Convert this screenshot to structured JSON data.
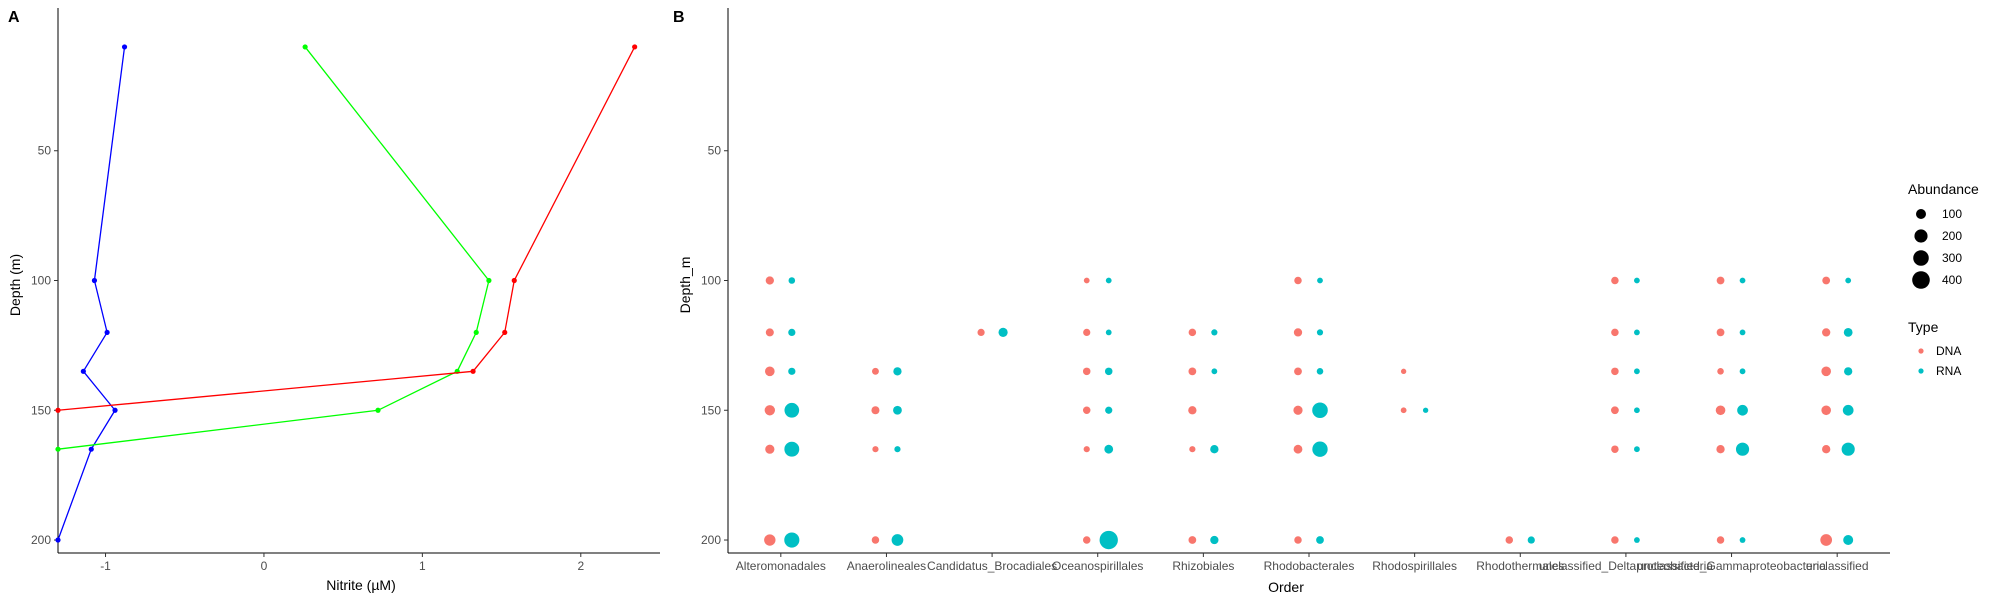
{
  "chart_data": [
    {
      "panel": "A",
      "type": "line",
      "xlabel": "Nitrite (µM)",
      "ylabel": "Depth (m)",
      "xlim": [
        -1.3,
        2.5
      ],
      "ylim": [
        205,
        -5
      ],
      "xticks": [
        -1,
        0,
        1,
        2
      ],
      "yticks": [
        50,
        100,
        150,
        200
      ],
      "grid": false,
      "series": [
        {
          "color": "#0000FF",
          "x": [
            -0.88,
            -1.07,
            -0.99,
            -1.14,
            -0.94,
            -1.09,
            -1.3
          ],
          "y": [
            10,
            100,
            120,
            135,
            150,
            165,
            200
          ]
        },
        {
          "color": "#00FF00",
          "x": [
            0.26,
            1.42,
            1.34,
            1.22,
            0.72,
            -1.3
          ],
          "y": [
            10,
            100,
            120,
            135,
            150,
            165
          ]
        },
        {
          "color": "#FF0000",
          "x": [
            2.34,
            1.58,
            1.52,
            1.32,
            -1.3
          ],
          "y": [
            10,
            100,
            120,
            135,
            150
          ]
        }
      ]
    },
    {
      "panel": "B",
      "type": "scatter",
      "xlabel": "Order",
      "ylabel": "Depth_m",
      "ylim": [
        205,
        -5
      ],
      "yticks": [
        50,
        100,
        150,
        200
      ],
      "categories": [
        "Alteromonadales",
        "Anaerolineales",
        "Candidatus_Brocadiales",
        "Oceanospirillales",
        "Rhizobiales",
        "Rhodobacterales",
        "Rhodospirillales",
        "Rhodothermales",
        "unclassified_Deltaproteobacteria",
        "unclassified_Gammaproteobacteria",
        "unclassified"
      ],
      "legend": {
        "size_title": "Abundance",
        "size_values": [
          100,
          200,
          300,
          400
        ],
        "type_title": "Type",
        "types": [
          {
            "label": "DNA",
            "color": "#F8766D"
          },
          {
            "label": "RNA",
            "color": "#00BFC4"
          }
        ],
        "placement": "right"
      },
      "points": [
        {
          "order": 0,
          "depth": 100,
          "type": "DNA",
          "abundance": 60
        },
        {
          "order": 0,
          "depth": 100,
          "type": "RNA",
          "abundance": 30
        },
        {
          "order": 0,
          "depth": 120,
          "type": "DNA",
          "abundance": 55
        },
        {
          "order": 0,
          "depth": 120,
          "type": "RNA",
          "abundance": 40
        },
        {
          "order": 0,
          "depth": 135,
          "type": "DNA",
          "abundance": 90
        },
        {
          "order": 0,
          "depth": 135,
          "type": "RNA",
          "abundance": 40
        },
        {
          "order": 0,
          "depth": 150,
          "type": "DNA",
          "abundance": 110
        },
        {
          "order": 0,
          "depth": 150,
          "type": "RNA",
          "abundance": 260
        },
        {
          "order": 0,
          "depth": 165,
          "type": "DNA",
          "abundance": 80
        },
        {
          "order": 0,
          "depth": 165,
          "type": "RNA",
          "abundance": 270
        },
        {
          "order": 0,
          "depth": 200,
          "type": "DNA",
          "abundance": 140
        },
        {
          "order": 0,
          "depth": 200,
          "type": "RNA",
          "abundance": 280
        },
        {
          "order": 1,
          "depth": 135,
          "type": "DNA",
          "abundance": 35
        },
        {
          "order": 1,
          "depth": 135,
          "type": "RNA",
          "abundance": 60
        },
        {
          "order": 1,
          "depth": 150,
          "type": "DNA",
          "abundance": 55
        },
        {
          "order": 1,
          "depth": 150,
          "type": "RNA",
          "abundance": 70
        },
        {
          "order": 1,
          "depth": 165,
          "type": "DNA",
          "abundance": 25
        },
        {
          "order": 1,
          "depth": 165,
          "type": "RNA",
          "abundance": 25
        },
        {
          "order": 1,
          "depth": 200,
          "type": "DNA",
          "abundance": 45
        },
        {
          "order": 1,
          "depth": 200,
          "type": "RNA",
          "abundance": 150
        },
        {
          "order": 2,
          "depth": 120,
          "type": "DNA",
          "abundance": 40
        },
        {
          "order": 2,
          "depth": 120,
          "type": "RNA",
          "abundance": 80
        },
        {
          "order": 3,
          "depth": 100,
          "type": "DNA",
          "abundance": 20
        },
        {
          "order": 3,
          "depth": 100,
          "type": "RNA",
          "abundance": 20
        },
        {
          "order": 3,
          "depth": 120,
          "type": "DNA",
          "abundance": 40
        },
        {
          "order": 3,
          "depth": 120,
          "type": "RNA",
          "abundance": 20
        },
        {
          "order": 3,
          "depth": 135,
          "type": "DNA",
          "abundance": 45
        },
        {
          "order": 3,
          "depth": 135,
          "type": "RNA",
          "abundance": 45
        },
        {
          "order": 3,
          "depth": 150,
          "type": "DNA",
          "abundance": 45
        },
        {
          "order": 3,
          "depth": 150,
          "type": "RNA",
          "abundance": 40
        },
        {
          "order": 3,
          "depth": 165,
          "type": "DNA",
          "abundance": 25
        },
        {
          "order": 3,
          "depth": 165,
          "type": "RNA",
          "abundance": 70
        },
        {
          "order": 3,
          "depth": 200,
          "type": "DNA",
          "abundance": 45
        },
        {
          "order": 3,
          "depth": 200,
          "type": "RNA",
          "abundance": 440
        },
        {
          "order": 4,
          "depth": 120,
          "type": "DNA",
          "abundance": 45
        },
        {
          "order": 4,
          "depth": 120,
          "type": "RNA",
          "abundance": 25
        },
        {
          "order": 4,
          "depth": 135,
          "type": "DNA",
          "abundance": 50
        },
        {
          "order": 4,
          "depth": 135,
          "type": "RNA",
          "abundance": 20
        },
        {
          "order": 4,
          "depth": 150,
          "type": "DNA",
          "abundance": 60
        },
        {
          "order": 4,
          "depth": 165,
          "type": "DNA",
          "abundance": 25
        },
        {
          "order": 4,
          "depth": 165,
          "type": "RNA",
          "abundance": 60
        },
        {
          "order": 4,
          "depth": 200,
          "type": "DNA",
          "abundance": 50
        },
        {
          "order": 4,
          "depth": 200,
          "type": "RNA",
          "abundance": 60
        },
        {
          "order": 5,
          "depth": 100,
          "type": "DNA",
          "abundance": 45
        },
        {
          "order": 5,
          "depth": 100,
          "type": "RNA",
          "abundance": 20
        },
        {
          "order": 5,
          "depth": 120,
          "type": "DNA",
          "abundance": 60
        },
        {
          "order": 5,
          "depth": 120,
          "type": "RNA",
          "abundance": 25
        },
        {
          "order": 5,
          "depth": 135,
          "type": "DNA",
          "abundance": 50
        },
        {
          "order": 5,
          "depth": 135,
          "type": "RNA",
          "abundance": 30
        },
        {
          "order": 5,
          "depth": 150,
          "type": "DNA",
          "abundance": 80
        },
        {
          "order": 5,
          "depth": 150,
          "type": "RNA",
          "abundance": 300
        },
        {
          "order": 5,
          "depth": 165,
          "type": "DNA",
          "abundance": 70
        },
        {
          "order": 5,
          "depth": 165,
          "type": "RNA",
          "abundance": 290
        },
        {
          "order": 5,
          "depth": 200,
          "type": "DNA",
          "abundance": 45
        },
        {
          "order": 5,
          "depth": 200,
          "type": "RNA",
          "abundance": 50
        },
        {
          "order": 6,
          "depth": 135,
          "type": "DNA",
          "abundance": 15
        },
        {
          "order": 6,
          "depth": 150,
          "type": "DNA",
          "abundance": 20
        },
        {
          "order": 6,
          "depth": 150,
          "type": "RNA",
          "abundance": 15
        },
        {
          "order": 7,
          "depth": 200,
          "type": "DNA",
          "abundance": 45
        },
        {
          "order": 7,
          "depth": 200,
          "type": "RNA",
          "abundance": 40
        },
        {
          "order": 8,
          "depth": 100,
          "type": "DNA",
          "abundance": 45
        },
        {
          "order": 8,
          "depth": 100,
          "type": "RNA",
          "abundance": 20
        },
        {
          "order": 8,
          "depth": 120,
          "type": "DNA",
          "abundance": 45
        },
        {
          "order": 8,
          "depth": 120,
          "type": "RNA",
          "abundance": 20
        },
        {
          "order": 8,
          "depth": 135,
          "type": "DNA",
          "abundance": 45
        },
        {
          "order": 8,
          "depth": 135,
          "type": "RNA",
          "abundance": 20
        },
        {
          "order": 8,
          "depth": 150,
          "type": "DNA",
          "abundance": 50
        },
        {
          "order": 8,
          "depth": 150,
          "type": "RNA",
          "abundance": 20
        },
        {
          "order": 8,
          "depth": 165,
          "type": "DNA",
          "abundance": 45
        },
        {
          "order": 8,
          "depth": 165,
          "type": "RNA",
          "abundance": 20
        },
        {
          "order": 8,
          "depth": 200,
          "type": "DNA",
          "abundance": 45
        },
        {
          "order": 8,
          "depth": 200,
          "type": "RNA",
          "abundance": 20
        },
        {
          "order": 9,
          "depth": 100,
          "type": "DNA",
          "abundance": 50
        },
        {
          "order": 9,
          "depth": 100,
          "type": "RNA",
          "abundance": 20
        },
        {
          "order": 9,
          "depth": 120,
          "type": "DNA",
          "abundance": 50
        },
        {
          "order": 9,
          "depth": 120,
          "type": "RNA",
          "abundance": 20
        },
        {
          "order": 9,
          "depth": 135,
          "type": "DNA",
          "abundance": 30
        },
        {
          "order": 9,
          "depth": 135,
          "type": "RNA",
          "abundance": 20
        },
        {
          "order": 9,
          "depth": 150,
          "type": "DNA",
          "abundance": 90
        },
        {
          "order": 9,
          "depth": 150,
          "type": "RNA",
          "abundance": 120
        },
        {
          "order": 9,
          "depth": 165,
          "type": "DNA",
          "abundance": 60
        },
        {
          "order": 9,
          "depth": 165,
          "type": "RNA",
          "abundance": 200
        },
        {
          "order": 9,
          "depth": 200,
          "type": "DNA",
          "abundance": 45
        },
        {
          "order": 9,
          "depth": 200,
          "type": "RNA",
          "abundance": 20
        },
        {
          "order": 10,
          "depth": 100,
          "type": "DNA",
          "abundance": 50
        },
        {
          "order": 10,
          "depth": 100,
          "type": "RNA",
          "abundance": 20
        },
        {
          "order": 10,
          "depth": 120,
          "type": "DNA",
          "abundance": 60
        },
        {
          "order": 10,
          "depth": 120,
          "type": "RNA",
          "abundance": 70
        },
        {
          "order": 10,
          "depth": 135,
          "type": "DNA",
          "abundance": 90
        },
        {
          "order": 10,
          "depth": 135,
          "type": "RNA",
          "abundance": 60
        },
        {
          "order": 10,
          "depth": 150,
          "type": "DNA",
          "abundance": 90
        },
        {
          "order": 10,
          "depth": 150,
          "type": "RNA",
          "abundance": 120
        },
        {
          "order": 10,
          "depth": 165,
          "type": "DNA",
          "abundance": 60
        },
        {
          "order": 10,
          "depth": 165,
          "type": "RNA",
          "abundance": 200
        },
        {
          "order": 10,
          "depth": 200,
          "type": "DNA",
          "abundance": 150
        },
        {
          "order": 10,
          "depth": 200,
          "type": "RNA",
          "abundance": 100
        }
      ]
    }
  ],
  "labels": {
    "panel_a": "A",
    "panel_b": "B",
    "panel_a_xlabel": "Nitrite (µM)",
    "panel_a_ylabel": "Depth (m)",
    "panel_b_xlabel": "Order",
    "panel_b_ylabel": "Depth_m",
    "category_labels": [
      "Alteromonadales",
      "Anaerolineales",
      "Candidatus_Brocadiales",
      "Oceanospirillales",
      "Rhizobiales",
      "Rhodobacterales",
      "Rhodospirillales",
      "Rhodothermales",
      "unclassified_Deltaproteobacteria",
      "unclassified_Gammaproteobacteria",
      "unclassified"
    ]
  }
}
